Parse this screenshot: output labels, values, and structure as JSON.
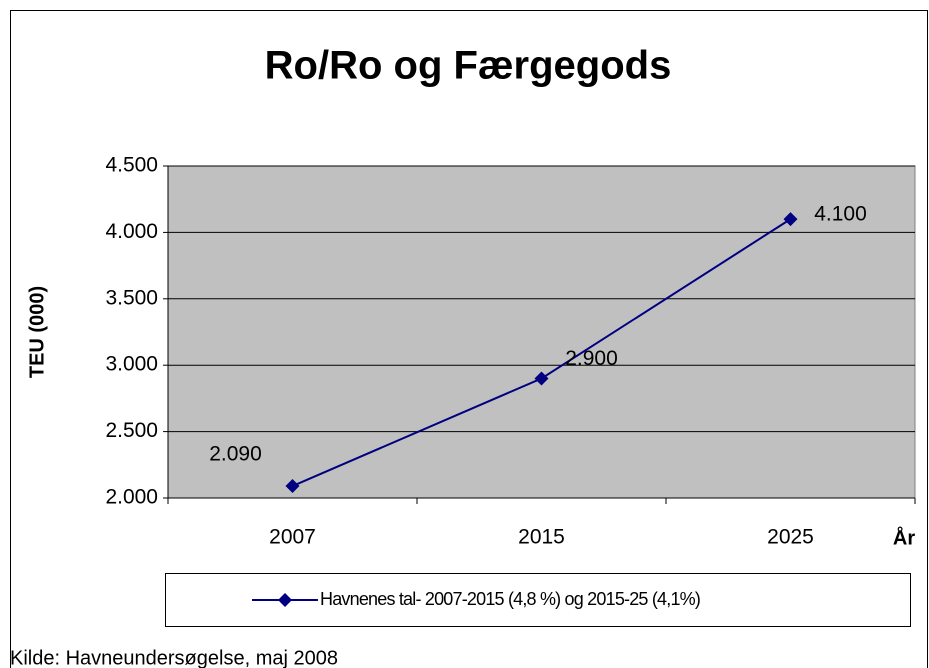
{
  "chart_data": {
    "type": "line",
    "title": "Ro/Ro og Færgegods",
    "y_label": "TEU (000)",
    "x_label": "År",
    "categories": [
      "2007",
      "2015",
      "2025"
    ],
    "series": [
      {
        "name": "Havnenes tal- 2007-2015 (4,8 %) og 2015-25 (4,1%)",
        "color": "#000080",
        "values": [
          2090,
          2900,
          4100
        ],
        "value_labels": [
          "2.090",
          "2.900",
          "4.100"
        ]
      }
    ],
    "ylim": [
      2000,
      4500
    ],
    "yticks": [
      {
        "value": 2000,
        "label": "2.000"
      },
      {
        "value": 2500,
        "label": "2.500"
      },
      {
        "value": 3000,
        "label": "3.000"
      },
      {
        "value": 3500,
        "label": "3.500"
      },
      {
        "value": 4000,
        "label": "4.000"
      },
      {
        "value": 4500,
        "label": "4.500"
      }
    ],
    "grid": true,
    "plot_background": "#c0c0c0",
    "source": "Kilde: Havneundersøgelse, maj 2008"
  }
}
